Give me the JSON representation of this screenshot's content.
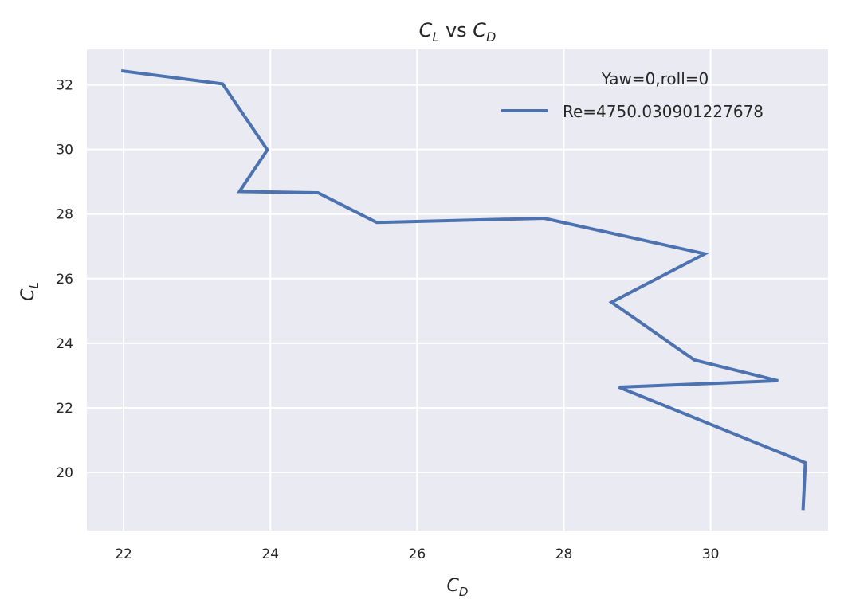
{
  "chart_data": {
    "type": "line",
    "title": {
      "main": "C",
      "main_sub": "L",
      "mid": " vs ",
      "second": "C",
      "second_sub": "D"
    },
    "xlabel": {
      "main": "C",
      "sub": "D"
    },
    "ylabel": {
      "main": "C",
      "sub": "L"
    },
    "xlim": [
      21.5,
      31.6
    ],
    "ylim": [
      18.2,
      33.1
    ],
    "xticks": [
      22,
      24,
      26,
      28,
      30
    ],
    "yticks": [
      20,
      22,
      24,
      26,
      28,
      30,
      32
    ],
    "grid": true,
    "legend": {
      "title": "Yaw=0,roll=0",
      "placement": "top-right"
    },
    "series": [
      {
        "name": "Re=4750.030901227678",
        "color": "#4c72b0",
        "x": [
          21.99,
          23.35,
          23.96,
          23.58,
          24.65,
          25.45,
          27.73,
          29.92,
          28.65,
          29.78,
          30.92,
          28.75,
          31.29,
          31.26
        ],
        "y": [
          32.43,
          32.03,
          29.99,
          28.7,
          28.66,
          27.74,
          27.87,
          26.77,
          25.27,
          23.48,
          22.84,
          22.64,
          20.3,
          18.88
        ]
      }
    ]
  }
}
